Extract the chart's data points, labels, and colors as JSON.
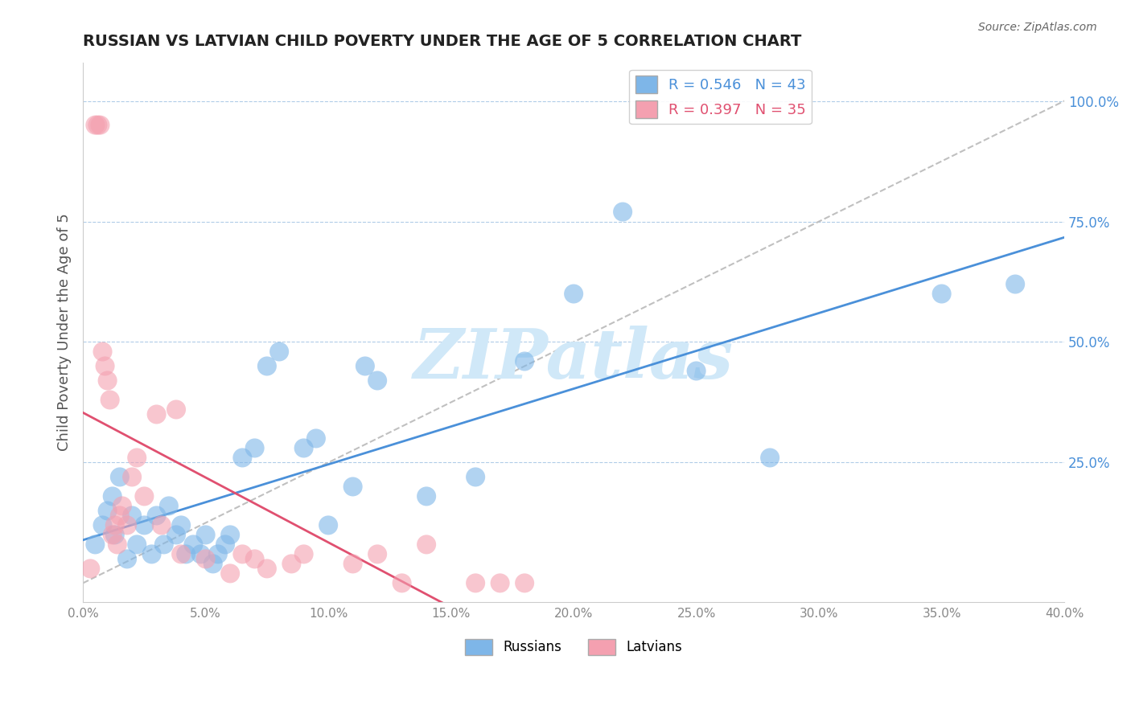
{
  "title": "RUSSIAN VS LATVIAN CHILD POVERTY UNDER THE AGE OF 5 CORRELATION CHART",
  "source": "Source: ZipAtlas.com",
  "ylabel": "Child Poverty Under the Age of 5",
  "xlim": [
    0.0,
    0.4
  ],
  "ylim": [
    -0.04,
    1.08
  ],
  "legend_russian_r": "R = 0.546",
  "legend_russian_n": "N = 43",
  "legend_latvian_r": "R = 0.397",
  "legend_latvian_n": "N = 35",
  "russian_color": "#7EB6E8",
  "latvian_color": "#F4A0B0",
  "russian_line_color": "#4A90D9",
  "latvian_line_color": "#E05070",
  "diagonal_line_color": "#C0C0C0",
  "background_color": "#FFFFFF",
  "watermark_text": "ZIPatlas",
  "watermark_color": "#D0E8F8",
  "russians_x": [
    0.005,
    0.008,
    0.01,
    0.012,
    0.013,
    0.015,
    0.018,
    0.02,
    0.022,
    0.025,
    0.028,
    0.03,
    0.033,
    0.035,
    0.038,
    0.04,
    0.042,
    0.045,
    0.048,
    0.05,
    0.053,
    0.055,
    0.058,
    0.06,
    0.065,
    0.07,
    0.075,
    0.08,
    0.09,
    0.095,
    0.1,
    0.11,
    0.115,
    0.12,
    0.14,
    0.16,
    0.18,
    0.2,
    0.22,
    0.25,
    0.28,
    0.35,
    0.38
  ],
  "russians_y": [
    0.08,
    0.12,
    0.15,
    0.18,
    0.1,
    0.22,
    0.05,
    0.14,
    0.08,
    0.12,
    0.06,
    0.14,
    0.08,
    0.16,
    0.1,
    0.12,
    0.06,
    0.08,
    0.06,
    0.1,
    0.04,
    0.06,
    0.08,
    0.1,
    0.26,
    0.28,
    0.45,
    0.48,
    0.28,
    0.3,
    0.12,
    0.2,
    0.45,
    0.42,
    0.18,
    0.22,
    0.46,
    0.6,
    0.77,
    0.44,
    0.26,
    0.6,
    0.62
  ],
  "latvians_x": [
    0.003,
    0.005,
    0.006,
    0.007,
    0.008,
    0.009,
    0.01,
    0.011,
    0.012,
    0.013,
    0.014,
    0.015,
    0.016,
    0.018,
    0.02,
    0.022,
    0.025,
    0.03,
    0.032,
    0.038,
    0.04,
    0.05,
    0.06,
    0.065,
    0.07,
    0.075,
    0.085,
    0.09,
    0.11,
    0.12,
    0.13,
    0.14,
    0.16,
    0.17,
    0.18
  ],
  "latvians_y": [
    0.03,
    0.95,
    0.95,
    0.95,
    0.48,
    0.45,
    0.42,
    0.38,
    0.1,
    0.12,
    0.08,
    0.14,
    0.16,
    0.12,
    0.22,
    0.26,
    0.18,
    0.35,
    0.12,
    0.36,
    0.06,
    0.05,
    0.02,
    0.06,
    0.05,
    0.03,
    0.04,
    0.06,
    0.04,
    0.06,
    0.0,
    0.08,
    0.0,
    0.0,
    0.0
  ]
}
